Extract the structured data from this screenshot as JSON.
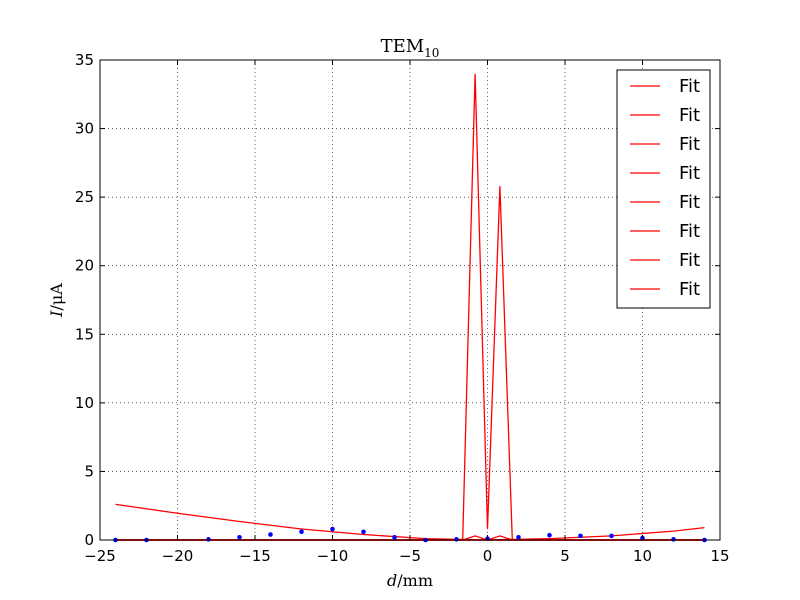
{
  "chart_data": {
    "type": "line",
    "title": "TEM",
    "title_subscript": "10",
    "xlabel_var": "d",
    "xlabel_unit": "/mm",
    "ylabel_var": "I",
    "ylabel_unit": "/μA",
    "xlim": [
      -25,
      15
    ],
    "ylim": [
      0,
      35
    ],
    "xticks": [
      -25,
      -20,
      -15,
      -10,
      -5,
      0,
      5,
      10,
      15
    ],
    "yticks": [
      0,
      5,
      10,
      15,
      20,
      25,
      30,
      35
    ],
    "xtick_labels": [
      "−25",
      "−20",
      "−15",
      "−10",
      "−5",
      "0",
      "5",
      "10",
      "15"
    ],
    "ytick_labels": [
      "0",
      "5",
      "10",
      "15",
      "20",
      "25",
      "30",
      "35"
    ],
    "grid": true,
    "legend_position": "top-right",
    "legend_entries": [
      "Fit",
      "Fit",
      "Fit",
      "Fit",
      "Fit",
      "Fit",
      "Fit",
      "Fit"
    ],
    "colors": {
      "fit": "#ff0000",
      "data": "#0000ff"
    },
    "scatter_series": {
      "x": [
        -24,
        -22,
        -18,
        -16,
        -14,
        -12,
        -10,
        -8,
        -6,
        -4,
        -2,
        0,
        2,
        4,
        6,
        8,
        10,
        12,
        14
      ],
      "y": [
        0,
        0,
        0.05,
        0.2,
        0.4,
        0.6,
        0.8,
        0.6,
        0.2,
        0,
        0.05,
        0.1,
        0.2,
        0.35,
        0.3,
        0.3,
        0.15,
        0.05,
        0
      ]
    },
    "fit_series": [
      {
        "x": [
          -24,
          -20,
          -16,
          -12,
          -8,
          -4,
          0,
          4,
          8,
          12,
          14
        ],
        "y": [
          2.6,
          1.95,
          1.35,
          0.8,
          0.4,
          0.1,
          0,
          0.1,
          0.3,
          0.65,
          0.9
        ]
      },
      {
        "x": [
          -24,
          -1.6,
          -0.8,
          0,
          0.8,
          1.6,
          14
        ],
        "y": [
          0,
          0,
          34,
          0.8,
          25.8,
          0,
          0
        ]
      },
      {
        "x": [
          -24,
          -1.6,
          -0.8,
          0,
          0.8,
          1.6,
          14
        ],
        "y": [
          0,
          0,
          0.3,
          0,
          0.3,
          0,
          0
        ]
      },
      {
        "x": [
          -24,
          14
        ],
        "y": [
          0,
          0
        ]
      },
      {
        "x": [
          -24,
          14
        ],
        "y": [
          0,
          0
        ]
      },
      {
        "x": [
          -24,
          14
        ],
        "y": [
          0,
          0
        ]
      },
      {
        "x": [
          -24,
          14
        ],
        "y": [
          0,
          0
        ]
      },
      {
        "x": [
          -24,
          14
        ],
        "y": [
          0,
          0
        ]
      }
    ]
  }
}
